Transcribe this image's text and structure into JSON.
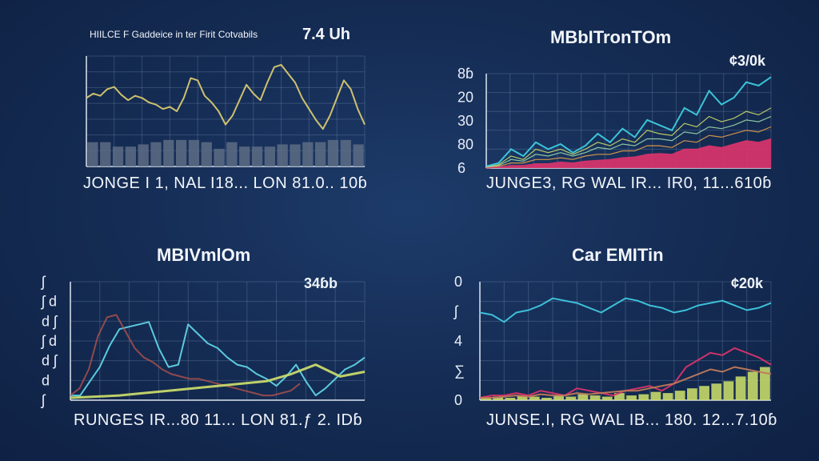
{
  "chart_data": [
    {
      "type": "line",
      "title": "HIILCE F Gaddeice in ter Firit Cotvabils",
      "value_label": "7.4 Uh",
      "caption": "JONGE I 1, NAL I18... LON 81.0.. 10ɓ",
      "y_tick_labels": [
        "",
        "",
        "",
        "",
        "",
        "",
        "",
        ""
      ],
      "series": [
        {
          "values": [
            62,
            66,
            64,
            70,
            72,
            65,
            60,
            64,
            62,
            58,
            56,
            52,
            54,
            50,
            62,
            80,
            78,
            64,
            58,
            50,
            38,
            46,
            60,
            74,
            66,
            60,
            76,
            90,
            92,
            84,
            76,
            62,
            52,
            42,
            34,
            46,
            62,
            78,
            70,
            52,
            38
          ]
        }
      ],
      "bars": [
        22,
        22,
        18,
        18,
        20,
        22,
        24,
        24,
        24,
        22,
        16,
        22,
        18,
        18,
        18,
        20,
        20,
        22,
        22,
        24,
        24,
        20
      ],
      "colors": {
        "line": "#d8c870",
        "bars": "#5d6c84"
      }
    },
    {
      "type": "area",
      "title": "MBbITronTOm",
      "value_label": "¢3/0k",
      "caption": "JUNGE3, RG WAL IR... IR0, 11...610ɓ",
      "y_tick_labels": [
        "8ɓ",
        "20",
        "30",
        "80",
        "6"
      ],
      "series": [
        {
          "values": [
            2,
            6,
            22,
            14,
            30,
            22,
            28,
            18,
            26,
            40,
            30,
            46,
            36,
            56,
            50,
            44,
            70,
            62,
            90,
            74,
            82,
            100,
            96,
            106
          ]
        },
        {
          "values": [
            1,
            4,
            14,
            10,
            22,
            18,
            22,
            16,
            22,
            30,
            26,
            34,
            30,
            44,
            40,
            38,
            52,
            48,
            60,
            54,
            58,
            66,
            62,
            70
          ]
        },
        {
          "values": [
            1,
            3,
            10,
            8,
            16,
            14,
            18,
            14,
            18,
            24,
            22,
            28,
            26,
            34,
            34,
            32,
            42,
            40,
            48,
            46,
            50,
            56,
            54,
            60
          ]
        },
        {
          "values": [
            0,
            2,
            6,
            6,
            10,
            10,
            12,
            10,
            14,
            16,
            16,
            20,
            20,
            26,
            26,
            24,
            32,
            30,
            38,
            36,
            40,
            44,
            42,
            48
          ]
        },
        {
          "values": [
            0,
            1,
            3,
            3,
            5,
            5,
            7,
            6,
            8,
            9,
            10,
            12,
            13,
            16,
            17,
            16,
            22,
            22,
            26,
            24,
            28,
            32,
            30,
            34
          ]
        }
      ],
      "colors": {
        "series": [
          "#3fd4e6",
          "#c7d96a",
          "#9ad6a8",
          "#e6a04a",
          "#d9346b"
        ]
      }
    },
    {
      "type": "line",
      "title": "MBIVmlOm",
      "value_label": "34ɓb",
      "caption": "RUNGES IR...80 11... LON 81.ƒ 2. IDɓ",
      "y_tick_labels": [
        "ʃ",
        "ʃ d",
        "d ʃ",
        "ʃ d",
        "d ʃ",
        "d",
        "ʃ"
      ],
      "series": [
        {
          "values": [
            4,
            4,
            16,
            28,
            46,
            60,
            62,
            64,
            66,
            44,
            28,
            30,
            64,
            56,
            48,
            44,
            36,
            30,
            28,
            22,
            18,
            12,
            20,
            30,
            16,
            4,
            10,
            18,
            26,
            30,
            36
          ]
        },
        {
          "values": [
            4,
            10,
            26,
            54,
            70,
            72,
            58,
            44,
            36,
            32,
            26,
            22,
            20,
            18,
            18,
            16,
            14,
            12,
            10,
            8,
            6,
            4,
            4,
            6,
            8,
            14
          ]
        },
        {
          "values": [
            2,
            3,
            4,
            6,
            8,
            10,
            12,
            14,
            16,
            22,
            30,
            20,
            24
          ]
        }
      ],
      "colors": {
        "series": [
          "#5fd3e6",
          "#b0524c",
          "#c7d96a"
        ]
      }
    },
    {
      "type": "line",
      "title": "Car EMITin",
      "value_label": "¢20k",
      "caption": "JUNSE.I, RG WAL IB... 180. 12...7.10ɓ",
      "y_tick_labels": [
        "0",
        "ʃ",
        "4",
        "∑",
        "0"
      ],
      "series": [
        {
          "values": [
            74,
            72,
            66,
            74,
            76,
            80,
            86,
            84,
            82,
            78,
            74,
            80,
            86,
            84,
            80,
            78,
            74,
            76,
            80,
            82,
            84,
            80,
            76,
            78,
            82
          ]
        },
        {
          "values": [
            2,
            4,
            4,
            6,
            4,
            8,
            6,
            4,
            10,
            8,
            6,
            4,
            8,
            10,
            12,
            8,
            14,
            28,
            34,
            40,
            38,
            44,
            40,
            36,
            30
          ]
        },
        {
          "values": [
            2,
            2,
            3,
            4,
            3,
            5,
            4,
            4,
            6,
            5,
            6,
            7,
            8,
            8,
            10,
            12,
            14,
            18,
            22,
            26,
            24,
            28,
            26,
            24,
            22
          ]
        }
      ],
      "bars": [
        2,
        3,
        2,
        4,
        3,
        2,
        4,
        3,
        5,
        4,
        3,
        6,
        4,
        5,
        7,
        6,
        8,
        10,
        12,
        14,
        16,
        20,
        24,
        28
      ],
      "colors": {
        "series": [
          "#3fc8e0",
          "#d9346b",
          "#c07a5a"
        ],
        "bars": "#c7d96a"
      }
    }
  ]
}
